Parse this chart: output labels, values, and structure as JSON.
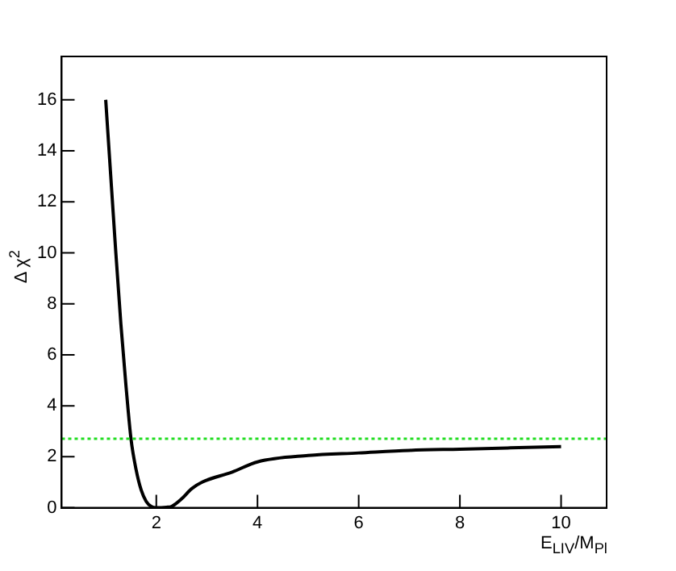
{
  "chart_data": {
    "type": "line",
    "xlabel": "E$_{LIV}$/M$_{Pl}$",
    "ylabel": "Δ χ$^{2}$",
    "x": [
      1,
      1.1,
      1.2,
      1.3,
      1.4,
      1.5,
      1.6,
      1.7,
      1.8,
      1.9,
      2.0,
      2.2,
      2.3,
      2.5,
      2.7,
      2.9,
      3.5,
      4,
      5,
      6,
      7,
      8,
      9,
      10
    ],
    "series": [
      {
        "color": "#000000",
        "values": [
          16,
          13,
          10,
          7.2,
          4.8,
          2.7,
          1.5,
          0.7,
          0.25,
          0.05,
          0,
          0.02,
          0.05,
          0.35,
          0.75,
          1.0,
          1.4,
          1.8,
          2.05,
          2.15,
          2.25,
          2.3,
          2.35,
          2.4
        ]
      }
    ],
    "xlim": [
      0.13,
      10.9
    ],
    "xticks": [
      2,
      4,
      6,
      8,
      10
    ],
    "ylim": [
      0,
      17.7
    ],
    "yticks": [
      0,
      2,
      4,
      6,
      8,
      10,
      12,
      14,
      16
    ],
    "ref_lines": [
      {
        "axis": "y",
        "value": 2.71,
        "color": "#22dd22",
        "line_style": "dotted"
      }
    ],
    "marker": "none",
    "line_style": "solid",
    "grid": false,
    "legend": false
  }
}
